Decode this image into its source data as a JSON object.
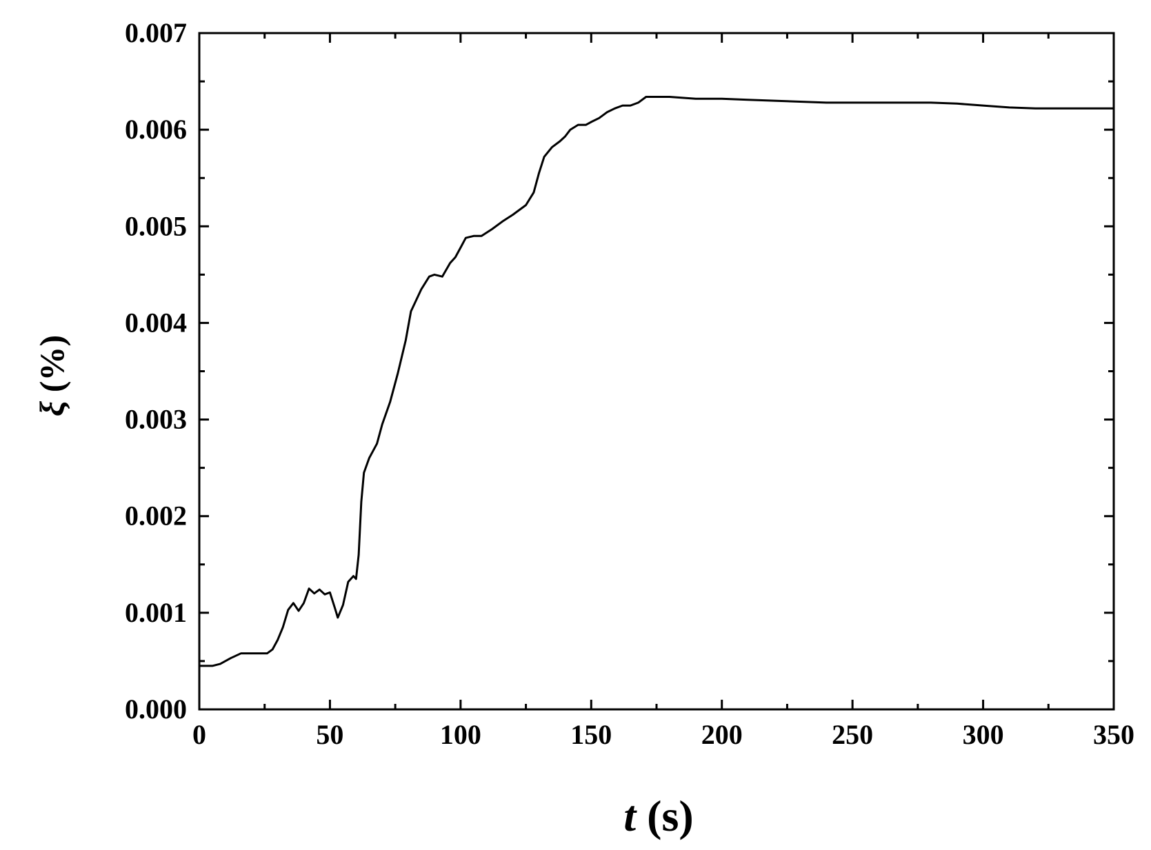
{
  "chart_data": {
    "type": "line",
    "title": "",
    "xlabel_symbol": "t",
    "xlabel_unit": " (s)",
    "ylabel_symbol": "ξ",
    "ylabel_unit": " (%)",
    "xlim": [
      0,
      350
    ],
    "ylim": [
      0,
      0.007
    ],
    "x_ticks": [
      0,
      50,
      100,
      150,
      200,
      250,
      300,
      350
    ],
    "x_tick_labels": [
      "0",
      "50",
      "100",
      "150",
      "200",
      "250",
      "300",
      "350"
    ],
    "y_ticks": [
      0,
      0.001,
      0.002,
      0.003,
      0.004,
      0.005,
      0.006,
      0.007
    ],
    "y_tick_labels": [
      "0.000",
      "0.001",
      "0.002",
      "0.003",
      "0.004",
      "0.005",
      "0.006",
      "0.007"
    ],
    "grid": false,
    "line_color": "#000000",
    "series": [
      {
        "x": [
          0,
          5,
          8,
          12,
          16,
          20,
          26,
          28,
          30,
          32,
          34,
          36,
          38,
          40,
          42,
          44,
          46,
          48,
          50,
          52,
          53,
          55,
          57,
          59,
          60,
          61,
          62,
          63,
          65,
          68,
          70,
          73,
          76,
          79,
          81,
          85,
          88,
          90,
          93,
          96,
          98,
          100,
          102,
          105,
          108,
          112,
          116,
          120,
          125,
          128,
          130,
          132,
          135,
          138,
          140,
          142,
          145,
          148,
          150,
          153,
          156,
          159,
          162,
          165,
          168,
          171,
          175,
          180,
          190,
          200,
          210,
          220,
          230,
          240,
          250,
          260,
          270,
          280,
          290,
          300,
          310,
          320,
          330,
          340,
          350
        ],
        "y": [
          0.00045,
          0.00045,
          0.00047,
          0.00053,
          0.00058,
          0.00058,
          0.00058,
          0.00062,
          0.00072,
          0.00085,
          0.00103,
          0.0011,
          0.00102,
          0.0011,
          0.00125,
          0.0012,
          0.00124,
          0.00119,
          0.00121,
          0.00104,
          0.00095,
          0.00108,
          0.00132,
          0.00138,
          0.00135,
          0.0016,
          0.00215,
          0.00245,
          0.0026,
          0.00275,
          0.00295,
          0.00318,
          0.00348,
          0.00382,
          0.00412,
          0.00435,
          0.00448,
          0.0045,
          0.00448,
          0.00462,
          0.00468,
          0.00478,
          0.00488,
          0.0049,
          0.0049,
          0.00497,
          0.00505,
          0.00512,
          0.00522,
          0.00535,
          0.00555,
          0.00572,
          0.00582,
          0.00588,
          0.00593,
          0.006,
          0.00605,
          0.00605,
          0.00608,
          0.00612,
          0.00618,
          0.00622,
          0.00625,
          0.00625,
          0.00628,
          0.00634,
          0.00634,
          0.00634,
          0.00632,
          0.00632,
          0.00631,
          0.0063,
          0.00629,
          0.00628,
          0.00628,
          0.00628,
          0.00628,
          0.00628,
          0.00627,
          0.00625,
          0.00623,
          0.00622,
          0.00622,
          0.00622,
          0.00622
        ]
      }
    ]
  }
}
